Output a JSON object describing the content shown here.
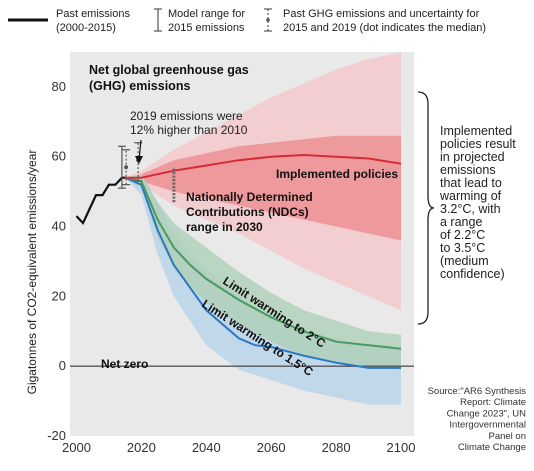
{
  "legend": {
    "past": [
      "Past emissions",
      "(2000-2015)"
    ],
    "model": [
      "Model range for",
      "2015 emissions"
    ],
    "ghg": [
      "Past GHG emissions and uncertainty for",
      "2015 and 2019 (dot indicates the median)"
    ]
  },
  "chart_data": {
    "type": "area",
    "title": [
      "Net global greenhouse gas",
      "(GHG) emissions"
    ],
    "ylabel": "Gigatonnes of CO2-equivalent emissions/year",
    "xlim": [
      1998,
      2104
    ],
    "ylim": [
      -20,
      90
    ],
    "x_ticks": [
      2000,
      2020,
      2040,
      2060,
      2080,
      2100
    ],
    "y_ticks": [
      -20,
      0,
      20,
      40,
      60,
      80
    ],
    "grid": false,
    "series": [
      {
        "name": "Past emissions",
        "x": [
          2000,
          2002,
          2004,
          2006,
          2008,
          2010,
          2012,
          2014,
          2015
        ],
        "y": [
          43,
          41,
          45,
          49,
          49,
          52,
          52,
          54,
          54
        ]
      },
      {
        "name": "Implemented policies",
        "x": [
          2015,
          2020,
          2025,
          2030,
          2040,
          2050,
          2060,
          2070,
          2080,
          2090,
          2100
        ],
        "y": [
          54,
          54,
          55,
          56,
          57.5,
          59,
          60,
          60.5,
          60,
          59.5,
          58
        ],
        "band_inner": {
          "x": [
            2015,
            2020,
            2030,
            2040,
            2050,
            2060,
            2070,
            2080,
            2090,
            2100
          ],
          "lower": [
            54,
            53,
            50,
            48,
            46,
            44,
            42,
            40,
            38,
            36
          ],
          "upper": [
            54,
            55,
            59,
            61,
            63,
            64,
            65,
            66,
            66,
            66
          ]
        },
        "band_outer": {
          "x": [
            2015,
            2020,
            2030,
            2040,
            2050,
            2060,
            2070,
            2080,
            2090,
            2100
          ],
          "lower": [
            54,
            52,
            46,
            42,
            38,
            33,
            28,
            24,
            20,
            16
          ],
          "upper": [
            54,
            56,
            62,
            67,
            72,
            77,
            81,
            85,
            88,
            90
          ]
        }
      },
      {
        "name": "Limit warming to 2°C",
        "x": [
          2015,
          2020,
          2025,
          2030,
          2035,
          2040,
          2050,
          2060,
          2070,
          2080,
          2090,
          2100
        ],
        "y": [
          54,
          53,
          42,
          34,
          29,
          25,
          19,
          14,
          10,
          7,
          6,
          5
        ],
        "band": {
          "x": [
            2015,
            2020,
            2025,
            2030,
            2040,
            2050,
            2060,
            2070,
            2080,
            2090,
            2100
          ],
          "lower": [
            54,
            51,
            37,
            28,
            18,
            12,
            7,
            3,
            1,
            0,
            -1
          ],
          "upper": [
            54,
            55,
            47,
            41,
            34,
            27,
            21,
            16,
            13,
            10,
            9
          ]
        }
      },
      {
        "name": "Limit warming to 1.5°C",
        "x": [
          2015,
          2020,
          2025,
          2030,
          2040,
          2050,
          2055,
          2060,
          2070,
          2080,
          2090,
          2100
        ],
        "y": [
          54,
          52,
          39,
          29,
          16,
          8,
          6,
          5.5,
          3,
          1,
          -0.5,
          -0.5
        ],
        "band": {
          "x": [
            2015,
            2020,
            2025,
            2030,
            2040,
            2050,
            2060,
            2070,
            2080,
            2090,
            2100
          ],
          "lower": [
            54,
            49,
            32,
            20,
            6,
            -1,
            -4,
            -7,
            -9,
            -11,
            -11
          ],
          "upper": [
            54,
            55,
            47,
            38,
            28,
            20,
            14,
            10,
            8,
            6,
            5
          ]
        }
      }
    ],
    "model_range_2015": [
      51,
      63
    ],
    "uncertainty_2015": {
      "median": 57,
      "range": [
        52,
        62
      ]
    },
    "uncertainty_2019": {
      "median": 59,
      "range": [
        53,
        64
      ]
    },
    "ndc_range_2030": [
      47,
      57
    ],
    "annotations": {
      "emissions_2019": [
        "2019 emissions were",
        "12% higher than 2010"
      ],
      "implemented": "Implemented policies",
      "ndc": [
        "Nationally Determined",
        "Contributions (NDCs)",
        "range in 2030"
      ],
      "warming_2c": "Limit warming to 2°C",
      "warming_15c": "Limit warming to 1.5°C",
      "net_zero": "Net zero"
    },
    "side_note": [
      "Implemented",
      "policies result",
      "in projected",
      "emissions",
      "that lead to",
      "warming of",
      "3.2°C, with",
      "a range",
      "of 2.2°C",
      "to 3.5°C",
      "(medium",
      "confidence)"
    ],
    "source": [
      "Source:\"AR6 Synthesis",
      "Report: Climate",
      "Change 2023\", UN",
      "Intergovernmental",
      "Panel on",
      "Climate Change"
    ]
  },
  "colors": {
    "panel": "#e9e9ea",
    "red": "#d62a35",
    "red_inner": "#ec8f93",
    "red_outer": "#f4c9cb",
    "green": "#4a9a5e",
    "green_band": "#aed0b6",
    "blue": "#2a78c2",
    "blue_band": "#b7d2ea",
    "past": "#111111"
  }
}
